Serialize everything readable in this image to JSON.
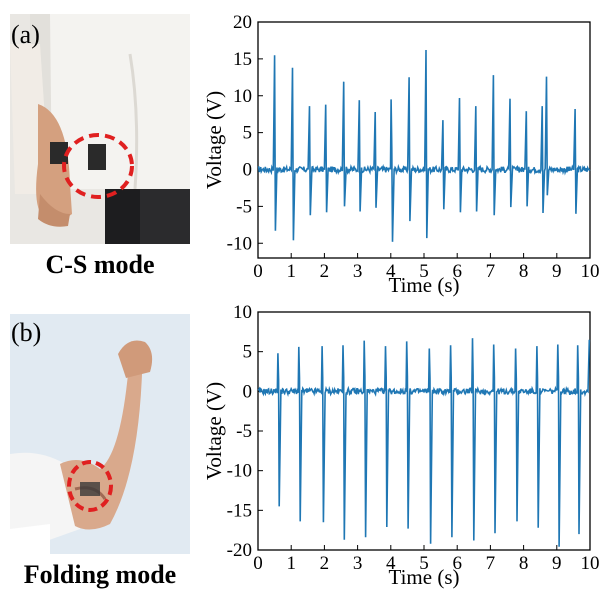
{
  "panels": [
    {
      "letter": "(a)",
      "caption": "C-S mode",
      "photo_icon": "wrist-sensor-photo",
      "chart_data": {
        "type": "line",
        "xlabel": "Time (s)",
        "ylabel": "Voltage (V)",
        "xlim": [
          0,
          10
        ],
        "ylim": [
          -12,
          20
        ],
        "xticks": [
          0,
          1,
          2,
          3,
          4,
          5,
          6,
          7,
          8,
          9,
          10
        ],
        "yticks": [
          -10,
          -5,
          0,
          5,
          10,
          15,
          20
        ],
        "color": "#1f77b4",
        "baseline": 0,
        "peaks": [
          {
            "x": 0.5,
            "max": 15.5,
            "min": -8.3
          },
          {
            "x": 1.04,
            "max": 13.8,
            "min": -9.6
          },
          {
            "x": 1.55,
            "max": 8.6,
            "min": -6.2
          },
          {
            "x": 2.04,
            "max": 8.8,
            "min": -5.8
          },
          {
            "x": 2.58,
            "max": 11.9,
            "min": -5.0
          },
          {
            "x": 3.05,
            "max": 9.4,
            "min": -5.7
          },
          {
            "x": 3.53,
            "max": 7.8,
            "min": -5.2
          },
          {
            "x": 4.03,
            "max": 9.5,
            "min": -9.8
          },
          {
            "x": 4.55,
            "max": 12.5,
            "min": -7.0
          },
          {
            "x": 5.06,
            "max": 16.2,
            "min": -9.3
          },
          {
            "x": 5.57,
            "max": 6.7,
            "min": -5.4
          },
          {
            "x": 6.07,
            "max": 9.7,
            "min": -5.8
          },
          {
            "x": 6.56,
            "max": 8.6,
            "min": -5.7
          },
          {
            "x": 7.09,
            "max": 12.8,
            "min": -6.2
          },
          {
            "x": 7.59,
            "max": 9.6,
            "min": -5.1
          },
          {
            "x": 8.08,
            "max": 7.9,
            "min": -5.0
          },
          {
            "x": 8.56,
            "max": 8.6,
            "min": -5.9
          },
          {
            "x": 8.69,
            "max": 12.6,
            "min": -3.5
          },
          {
            "x": 9.55,
            "max": 8.2,
            "min": -6.0
          }
        ]
      }
    },
    {
      "letter": "(b)",
      "caption": "Folding mode",
      "photo_icon": "elbow-sensor-photo",
      "chart_data": {
        "type": "line",
        "xlabel": "Time (s)",
        "ylabel": "Voltage (V)",
        "xlim": [
          0,
          10
        ],
        "ylim": [
          -20,
          10
        ],
        "xticks": [
          0,
          1,
          2,
          3,
          4,
          5,
          6,
          7,
          8,
          9,
          10
        ],
        "yticks": [
          -20,
          -15,
          -10,
          -5,
          0,
          5,
          10
        ],
        "color": "#1f77b4",
        "baseline": 0,
        "peaks": [
          {
            "x": 0.62,
            "max": 4.8,
            "min": -14.5
          },
          {
            "x": 1.25,
            "max": 5.6,
            "min": -16.4
          },
          {
            "x": 1.95,
            "max": 5.7,
            "min": -16.5
          },
          {
            "x": 2.58,
            "max": 5.8,
            "min": -18.7
          },
          {
            "x": 3.22,
            "max": 6.4,
            "min": -18.4
          },
          {
            "x": 3.86,
            "max": 5.7,
            "min": -17.1
          },
          {
            "x": 4.5,
            "max": 6.3,
            "min": -17.3
          },
          {
            "x": 5.18,
            "max": 5.4,
            "min": -19.2
          },
          {
            "x": 5.82,
            "max": 5.8,
            "min": -18.4
          },
          {
            "x": 6.48,
            "max": 6.7,
            "min": -18.8
          },
          {
            "x": 7.12,
            "max": 5.9,
            "min": -17.9
          },
          {
            "x": 7.78,
            "max": 5.4,
            "min": -16.4
          },
          {
            "x": 8.42,
            "max": 5.7,
            "min": -17.2
          },
          {
            "x": 9.05,
            "max": 5.9,
            "min": -19.6
          },
          {
            "x": 9.65,
            "max": 5.8,
            "min": -18.0
          },
          {
            "x": 9.98,
            "max": 6.5,
            "min": -0.5
          }
        ]
      }
    }
  ]
}
